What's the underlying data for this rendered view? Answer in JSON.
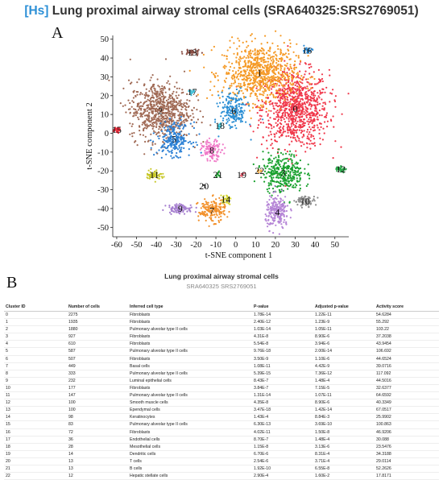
{
  "header": {
    "tag": "[Hs]",
    "title": "Lung proximal airway stromal cells (SRA640325:SRS2769051)"
  },
  "panel_a": {
    "letter": "A"
  },
  "panel_b": {
    "letter": "B"
  },
  "chart_data": {
    "type": "scatter",
    "xlabel": "t-SNE component 1",
    "ylabel": "t-SNE component 2",
    "xlim": [
      -62,
      57
    ],
    "ylim": [
      -55,
      52
    ],
    "xticks": [
      -60,
      -50,
      -40,
      -30,
      -20,
      -10,
      0,
      10,
      20,
      30,
      40,
      50
    ],
    "yticks": [
      -50,
      -40,
      -30,
      -20,
      -10,
      0,
      10,
      20,
      30,
      40,
      50
    ],
    "clusters": [
      {
        "id": "0",
        "color": "#f0374a",
        "x": 30,
        "y": 13,
        "sx": 10,
        "sy": 12,
        "n": 900
      },
      {
        "id": "1",
        "color": "#f59a26",
        "x": 12,
        "y": 32,
        "sx": 11,
        "sy": 9,
        "n": 780
      },
      {
        "id": "2",
        "color": "#a06a55",
        "x": -38,
        "y": 12,
        "sx": 9,
        "sy": 9,
        "n": 720
      },
      {
        "id": "3",
        "color": "#1aa12f",
        "x": 24,
        "y": -21,
        "sx": 6,
        "sy": 6,
        "n": 340
      },
      {
        "id": "4",
        "color": "#b585d6",
        "x": 21,
        "y": -42,
        "sx": 3.5,
        "sy": 5,
        "n": 220
      },
      {
        "id": "5",
        "color": "#2a7fd4",
        "x": -31,
        "y": -3,
        "sx": 5,
        "sy": 5,
        "n": 220
      },
      {
        "id": "6",
        "color": "#2a8ed4",
        "x": -1,
        "y": 12,
        "sx": 4,
        "sy": 6,
        "n": 190
      },
      {
        "id": "7",
        "color": "#f2902a",
        "x": -12,
        "y": -41,
        "sx": 4,
        "sy": 3.5,
        "n": 170
      },
      {
        "id": "8",
        "color": "#f07ac8",
        "x": -12,
        "y": -9,
        "sx": 3,
        "sy": 3,
        "n": 120
      },
      {
        "id": "9",
        "color": "#a67fd0",
        "x": -28,
        "y": -40,
        "sx": 4,
        "sy": 1.5,
        "n": 90
      },
      {
        "id": "10",
        "color": "#8c8c8c",
        "x": 35,
        "y": -36,
        "sx": 3,
        "sy": 1.5,
        "n": 70
      },
      {
        "id": "11",
        "color": "#c8c82a",
        "x": -41,
        "y": -22,
        "sx": 2.5,
        "sy": 1.5,
        "n": 60
      },
      {
        "id": "12",
        "color": "#2aa84a",
        "x": 53,
        "y": -19,
        "sx": 1.5,
        "sy": 1,
        "n": 35
      },
      {
        "id": "13",
        "color": "#8a4f45",
        "x": -22,
        "y": 43,
        "sx": 2.5,
        "sy": 1,
        "n": 35
      },
      {
        "id": "14",
        "color": "#d6d632",
        "x": -5,
        "y": -35,
        "sx": 1.5,
        "sy": 1.5,
        "n": 35
      },
      {
        "id": "15",
        "color": "#ee2a3a",
        "x": -60,
        "y": 2,
        "sx": 1,
        "sy": 1,
        "n": 25
      },
      {
        "id": "16",
        "color": "#2a8ad4",
        "x": 36,
        "y": 44,
        "sx": 1.5,
        "sy": 1,
        "n": 25
      },
      {
        "id": "17",
        "color": "#42c0d8",
        "x": -22,
        "y": 22,
        "sx": 1,
        "sy": 1,
        "n": 15
      },
      {
        "id": "18",
        "color": "#35c2d6",
        "x": -8,
        "y": 4,
        "sx": 1,
        "sy": 1,
        "n": 12
      },
      {
        "id": "19",
        "color": "#e05a6a",
        "x": 3,
        "y": -22,
        "sx": 0.8,
        "sy": 0.8,
        "n": 8
      },
      {
        "id": "20",
        "color": "#2a2a2a",
        "x": -16,
        "y": -28,
        "sx": 0.5,
        "sy": 0.5,
        "n": 3
      },
      {
        "id": "21",
        "color": "#1aa12f",
        "x": -9,
        "y": -22,
        "sx": 1,
        "sy": 1,
        "n": 10
      },
      {
        "id": "22",
        "color": "#f5a83a",
        "x": 12,
        "y": -20,
        "sx": 0.8,
        "sy": 0.6,
        "n": 8
      }
    ]
  },
  "table": {
    "title": "Lung proximal airway stromal cells",
    "subtitle": "SRA640325 SRS2769051",
    "columns": [
      "Cluster ID",
      "Number of cells",
      "Inferred cell type",
      "P-value",
      "Adjusted p-value",
      "Activity score"
    ],
    "rows": [
      [
        "0",
        "2275",
        "Fibroblasts",
        "1.78E-14",
        "1.22E-11",
        "54.6284"
      ],
      [
        "1",
        "1935",
        "Fibroblasts",
        "2.40E-12",
        "1.23E-9",
        "55.292"
      ],
      [
        "2",
        "1880",
        "Pulmonary alveolar type II cells",
        "1.03E-14",
        "1.05E-11",
        "103.22"
      ],
      [
        "3",
        "927",
        "Fibroblasts",
        "4.31E-8",
        "8.90E-6",
        "37.2038"
      ],
      [
        "4",
        "610",
        "Fibroblasts",
        "5.54E-8",
        "3.94E-6",
        "43.9454"
      ],
      [
        "5",
        "587",
        "Pulmonary alveolar type II cells",
        "9.76E-18",
        "2.00E-14",
        "106.692"
      ],
      [
        "6",
        "507",
        "Fibroblasts",
        "3.50E-9",
        "1.10E-6",
        "44.6524"
      ],
      [
        "7",
        "449",
        "Basal cells",
        "1.08E-11",
        "4.42E-9",
        "39.0716"
      ],
      [
        "8",
        "333",
        "Pulmonary alveolar type II cells",
        "5.39E-15",
        "7.36E-12",
        "117.092"
      ],
      [
        "9",
        "232",
        "Luminal epithelial cells",
        "8.43E-7",
        "1.48E-4",
        "44.5016"
      ],
      [
        "10",
        "177",
        "Fibroblasts",
        "3.84E-7",
        "7.15E-5",
        "32.6377"
      ],
      [
        "11",
        "147",
        "Pulmonary alveolar type II cells",
        "1.31E-14",
        "1.07E-11",
        "64.6592"
      ],
      [
        "12",
        "100",
        "Smooth muscle cells",
        "4.35E-8",
        "8.90E-6",
        "40.3349"
      ],
      [
        "13",
        "100",
        "Ependymal cells",
        "3.47E-18",
        "1.42E-14",
        "67.0517"
      ],
      [
        "14",
        "98",
        "Keratinocytes",
        "1.43E-4",
        "8.84E-3",
        "25.9902"
      ],
      [
        "15",
        "83",
        "Pulmonary alveolar type II cells",
        "6.30E-13",
        "3.69E-10",
        "100.863"
      ],
      [
        "16",
        "72",
        "Fibroblasts",
        "4.02E-11",
        "1.50E-8",
        "46.9206"
      ],
      [
        "17",
        "36",
        "Endothelial cells",
        "8.70E-7",
        "1.48E-4",
        "30.088"
      ],
      [
        "18",
        "28",
        "Mesothelial cells",
        "1.15E-8",
        "3.13E-6",
        "23.5476"
      ],
      [
        "19",
        "14",
        "Dendritic cells",
        "6.70E-6",
        "8.31E-4",
        "34.3188"
      ],
      [
        "20",
        "13",
        "T cells",
        "2.54E-6",
        "3.71E-4",
        "29.0114"
      ],
      [
        "21",
        "13",
        "B cells",
        "1.92E-10",
        "6.55E-8",
        "52.2626"
      ],
      [
        "22",
        "12",
        "Hepatic stellate cells",
        "2.90E-4",
        "1.60E-2",
        "17.8171"
      ]
    ]
  }
}
